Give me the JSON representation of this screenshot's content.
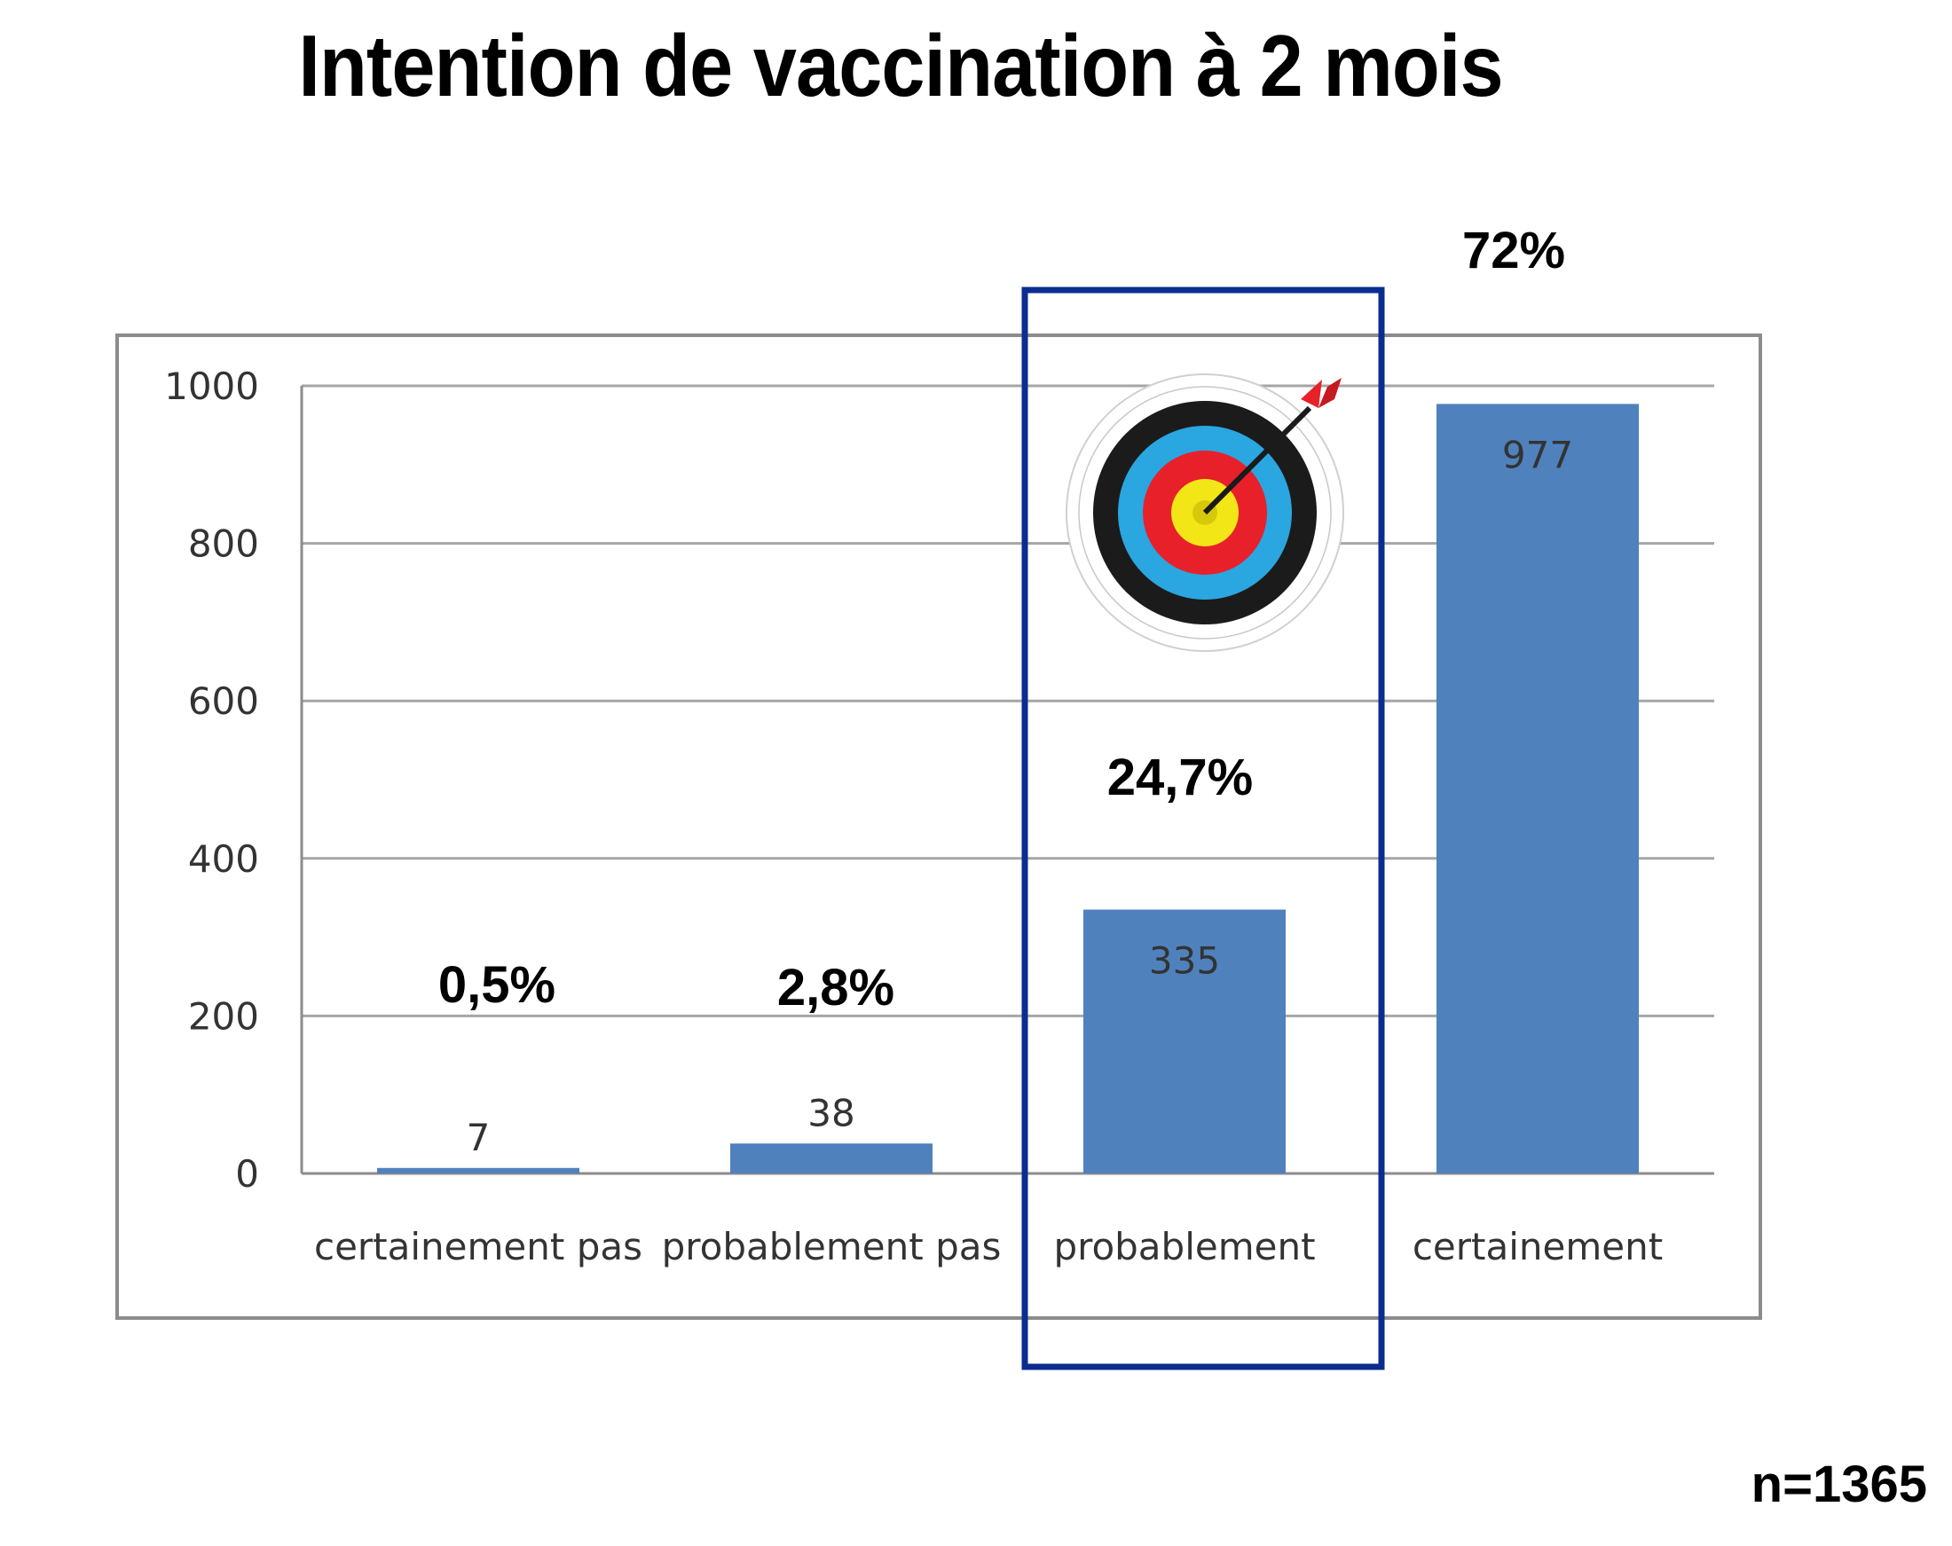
{
  "chart_data": {
    "type": "bar",
    "title": "Intention de vaccination à 2 mois",
    "categories": [
      "certainement pas",
      "probablement pas",
      "probablement",
      "certainement"
    ],
    "values": [
      7,
      38,
      335,
      977
    ],
    "data_labels": [
      "7",
      "38",
      "335",
      "977"
    ],
    "percent_labels": [
      "0,5%",
      "2,8%",
      "24,7%",
      "72%"
    ],
    "yticks": [
      0,
      200,
      400,
      600,
      800,
      1000
    ],
    "ylim": [
      0,
      1000
    ],
    "grid": true,
    "legend": "none",
    "bar_color": "#4f81bd",
    "highlight_category": "probablement",
    "highlight_color": "#0b2d8f",
    "annotation_icon": "target-icon"
  },
  "footnote": "n=1365"
}
